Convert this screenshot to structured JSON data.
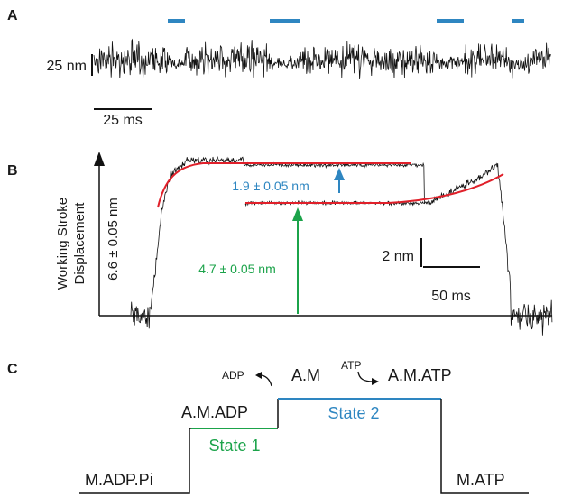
{
  "panel_a": {
    "label": "A",
    "scale_y": "25 nm",
    "scale_x": "25 ms"
  },
  "panel_b": {
    "label": "B",
    "y_axis_title": "Working Stroke",
    "y_axis_title_2": "Displacement",
    "y_axis_value": "6.6 ± 0.05 nm",
    "blue_annotation": "1.9 ± 0.05 nm",
    "green_annotation": "4.7 ± 0.05 nm",
    "scale_y": "2 nm",
    "scale_x": "50 ms"
  },
  "panel_c": {
    "label": "C",
    "state_m_adp_pi": "M.ADP.Pi",
    "state_am_adp": "A.M.ADP",
    "state_am": "A.M",
    "state_am_atp": "A.M.ATP",
    "state_m_atp": "M.ATP",
    "adp_label": "ADP",
    "atp_label": "ATP",
    "state1": "State 1",
    "state2": "State 2"
  },
  "colors": {
    "blue": "#2e86c1",
    "green": "#1ba34a",
    "red": "#e0202a",
    "trace": "#111111"
  }
}
